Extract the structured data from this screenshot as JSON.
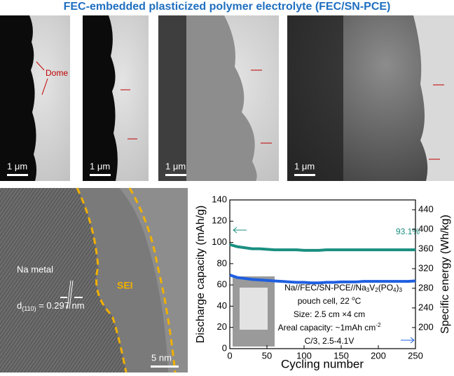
{
  "title": "FEC-embedded plasticized polymer electrolyte (FEC/SN-PCE)",
  "micrographs": [
    {
      "scale_bar": "1 μm",
      "label": "Dome"
    },
    {
      "scale_bar": "1 μm"
    },
    {
      "scale_bar": "1 μm"
    },
    {
      "scale_bar": "1 μm"
    }
  ],
  "hrtem": {
    "metal": "Na metal",
    "sei": "SEI",
    "d_spacing": [
      "d",
      "(110)",
      " = 0.297 nm"
    ],
    "scale_bar": "5 nm"
  },
  "chart_data": {
    "type": "line",
    "xlabel": "Cycling number",
    "ylabel": "Discharge capacity (mAh/g)",
    "y2label": "Specific energy (Wh/kg)",
    "x": [
      0,
      10,
      20,
      30,
      40,
      50,
      60,
      70,
      80,
      90,
      100,
      110,
      120,
      130,
      140,
      150,
      160,
      170,
      180,
      190,
      200,
      210,
      220,
      230,
      240,
      250
    ],
    "series": [
      {
        "color": "#1a8f80",
        "values": [
          98,
          96,
          95,
          94,
          94,
          93.5,
          93,
          93,
          93,
          93,
          92.5,
          92.5,
          92.5,
          93,
          93,
          93,
          93,
          93,
          93,
          93,
          93,
          93,
          93,
          93,
          93,
          93
        ]
      },
      {
        "color": "#1f5fe0",
        "axis": "y2",
        "values": [
          307,
          302,
          300,
          298,
          297,
          296,
          295,
          294,
          293,
          292,
          292,
          291,
          291,
          292,
          292,
          293,
          293,
          293,
          294,
          294,
          294,
          294,
          294,
          294,
          294,
          295
        ]
      }
    ],
    "xlim": [
      0,
      250
    ],
    "xticks": [
      0,
      50,
      100,
      150,
      200,
      250
    ],
    "ylim": [
      0,
      140
    ],
    "yticks": [
      0,
      20,
      40,
      60,
      80,
      100,
      120,
      140
    ],
    "y2lim": [
      157,
      460
    ],
    "y2ticks": [
      200,
      240,
      280,
      320,
      360,
      400,
      440
    ],
    "annotation": "93.1%",
    "inset": {
      "line1": [
        "Na//FEC/SN-PCE//Na",
        "3",
        "V",
        "2",
        "(PO",
        "4",
        ")",
        "3"
      ],
      "line2": [
        "pouch cell, 22 ",
        "o",
        "C"
      ],
      "line3": "Size:  2.5 cm ×4 cm",
      "line4": [
        "Areal capacity: ~1mAh cm",
        "-2"
      ],
      "line5": "C/3, 2.5-4.1V"
    }
  }
}
